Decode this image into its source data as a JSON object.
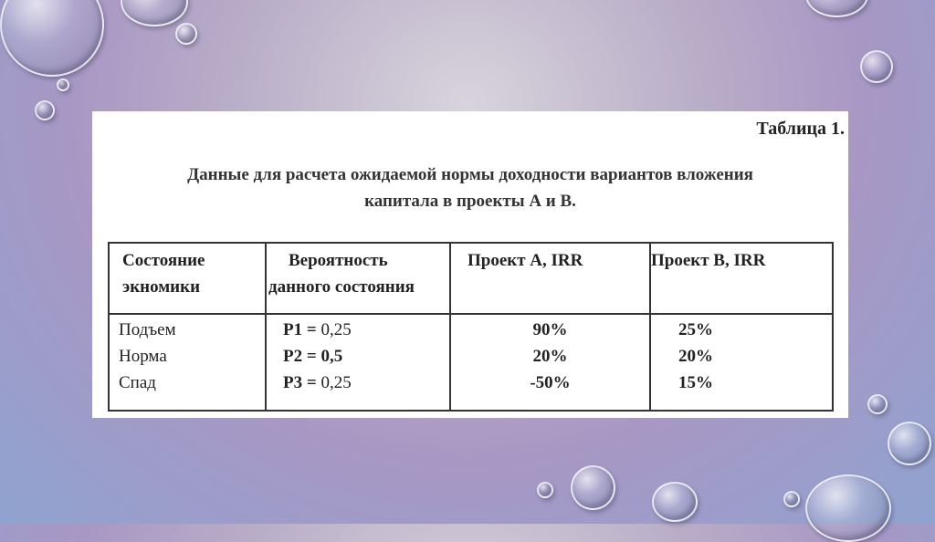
{
  "caption": "Таблица 1.",
  "title_line1": "Данные для расчета ожидаемой нормы доходности вариантов вложения",
  "title_line2": "капитала в проекты А и В.",
  "table": {
    "headers": [
      {
        "line1": "Состояние",
        "line2": "экномики"
      },
      {
        "line1": "Вероятность",
        "line2": "данного состояния"
      },
      {
        "line1": "Проект А, IRR",
        "line2": ""
      },
      {
        "line1": "Проект В, IRR",
        "line2": ""
      }
    ],
    "rows": [
      {
        "state": "Подъем",
        "prob_label": "P1 =",
        "prob_value": "0,25",
        "a": "90%",
        "b": "25%"
      },
      {
        "state": "Норма",
        "prob_label": "P2 =",
        "prob_value": "0,5",
        "a": "20%",
        "b": "20%"
      },
      {
        "state": "Спад",
        "prob_label": "P3 =",
        "prob_value": "0,25",
        "a": "-50%",
        "b": "15%"
      }
    ]
  }
}
